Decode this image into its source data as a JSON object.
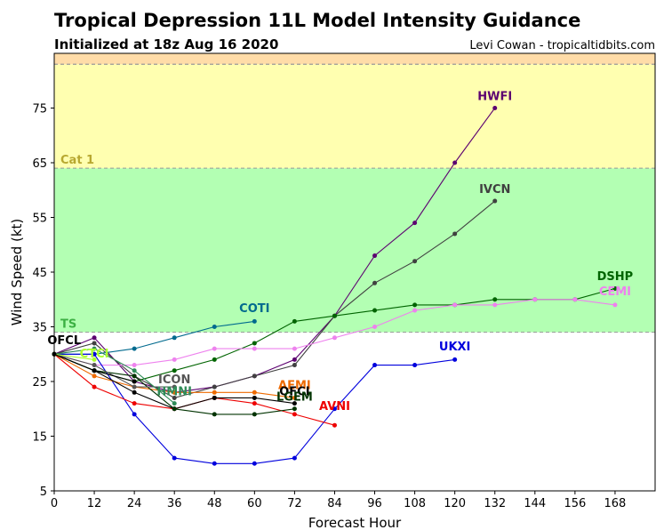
{
  "header": {
    "title": "Tropical Depression 11L Model Intensity Guidance",
    "subtitle": "Initialized at 18z Aug 16 2020",
    "credit": "Levi Cowan - tropicaltidbits.com"
  },
  "chart_data": {
    "type": "line",
    "xlabel": "Forecast Hour",
    "ylabel": "Wind Speed (kt)",
    "xlim": [
      0,
      180
    ],
    "ylim": [
      5,
      85
    ],
    "xticks": [
      0,
      12,
      24,
      36,
      48,
      60,
      72,
      84,
      96,
      108,
      120,
      132,
      144,
      156,
      168
    ],
    "yticks": [
      5,
      15,
      25,
      35,
      45,
      55,
      65,
      75
    ],
    "bands": [
      {
        "label": "TS",
        "from": 34,
        "to": 64,
        "color": "#b3ffb3",
        "label_color": "#3cb043"
      },
      {
        "label": "Cat 1",
        "from": 64,
        "to": 83,
        "color": "#ffffb0",
        "label_color": "#b8a830"
      },
      {
        "label": "",
        "from": 83,
        "to": 85,
        "color": "#ffdca8",
        "label_color": "#c08040"
      }
    ],
    "series": [
      {
        "name": "HWFI",
        "color": "#5c0070",
        "x": [
          0,
          12,
          24,
          36,
          48,
          60,
          72,
          84,
          96,
          108,
          120,
          132
        ],
        "y": [
          30,
          33,
          25,
          23,
          24,
          26,
          29,
          37,
          48,
          54,
          65,
          75
        ]
      },
      {
        "name": "IVCN",
        "color": "#404040",
        "x": [
          0,
          12,
          24,
          36,
          48,
          60,
          72,
          84,
          96,
          108,
          120,
          132
        ],
        "y": [
          30,
          32,
          26,
          22,
          24,
          26,
          28,
          37,
          43,
          47,
          52,
          58
        ]
      },
      {
        "name": "DSHP",
        "color": "#006400",
        "x": [
          0,
          12,
          24,
          36,
          48,
          60,
          72,
          84,
          96,
          108,
          120,
          132,
          144,
          156,
          168
        ],
        "y": [
          30,
          27,
          25,
          27,
          29,
          32,
          36,
          37,
          38,
          39,
          39,
          40,
          40,
          40,
          42
        ]
      },
      {
        "name": "CEMI",
        "color": "#ee82ee",
        "x": [
          0,
          12,
          24,
          36,
          48,
          60,
          72,
          84,
          96,
          108,
          120,
          132,
          144,
          156,
          168
        ],
        "y": [
          30,
          28,
          28,
          29,
          31,
          31,
          31,
          33,
          35,
          38,
          39,
          39,
          40,
          40,
          39
        ]
      },
      {
        "name": "COTI",
        "color": "#006a8e",
        "x": [
          0,
          12,
          24,
          36,
          48,
          60
        ],
        "y": [
          30,
          30,
          31,
          33,
          35,
          36
        ]
      },
      {
        "name": "UKXI",
        "color": "#0000dd",
        "x": [
          0,
          12,
          24,
          36,
          48,
          60,
          72,
          84,
          96,
          108,
          120
        ],
        "y": [
          30,
          30,
          19,
          11,
          10,
          10,
          11,
          20,
          28,
          28,
          29
        ]
      },
      {
        "name": "AVNI",
        "color": "#ee0000",
        "x": [
          0,
          12,
          24,
          36,
          48,
          60,
          72,
          84
        ],
        "y": [
          30,
          24,
          21,
          20,
          22,
          21,
          19,
          17
        ]
      },
      {
        "name": "AEMI",
        "color": "#ee6a00",
        "x": [
          0,
          12,
          24,
          36,
          48,
          60,
          72
        ],
        "y": [
          30,
          26,
          24,
          23,
          23,
          23,
          22
        ]
      },
      {
        "name": "OFCI",
        "color": "#000000",
        "x": [
          0,
          12,
          24,
          36,
          48,
          60,
          72
        ],
        "y": [
          30,
          27,
          23,
          20,
          22,
          22,
          21
        ]
      },
      {
        "name": "LGEM",
        "color": "#003300",
        "x": [
          0,
          12,
          24,
          36,
          48,
          60,
          72
        ],
        "y": [
          30,
          27,
          26,
          20,
          19,
          19,
          20
        ]
      },
      {
        "name": "ICON",
        "color": "#555555",
        "x": [
          0,
          12,
          24,
          36
        ],
        "y": [
          30,
          28,
          24,
          24
        ]
      },
      {
        "name": "HMNI",
        "color": "#2e8b57",
        "x": [
          0,
          12,
          24,
          36
        ],
        "y": [
          30,
          31,
          27,
          21
        ]
      },
      {
        "name": "CTCI",
        "color": "#adff2f",
        "x": [
          0,
          12
        ],
        "y": [
          30,
          29
        ]
      },
      {
        "name": "OFCL",
        "color": "#000000",
        "x": [
          0,
          12,
          24
        ],
        "y": [
          30,
          27,
          25
        ]
      }
    ],
    "labels": [
      {
        "text": "HWFI",
        "x": 132,
        "y": 76.5,
        "color": "#5c0070"
      },
      {
        "text": "IVCN",
        "x": 132,
        "y": 59.5,
        "color": "#404040"
      },
      {
        "text": "DSHP",
        "x": 168,
        "y": 43.5,
        "color": "#006400"
      },
      {
        "text": "CEMI",
        "x": 168,
        "y": 40.8,
        "color": "#ee82ee"
      },
      {
        "text": "COTI",
        "x": 60,
        "y": 37.7,
        "color": "#006a8e"
      },
      {
        "text": "UKXI",
        "x": 120,
        "y": 30.7,
        "color": "#0000dd"
      },
      {
        "text": "AVNI",
        "x": 84,
        "y": 19.8,
        "color": "#ee0000"
      },
      {
        "text": "AEMI",
        "x": 72,
        "y": 23.6,
        "color": "#ee6a00"
      },
      {
        "text": "OFCI",
        "x": 72,
        "y": 22.5,
        "color": "#000000"
      },
      {
        "text": "LGEM",
        "x": 72,
        "y": 21.5,
        "color": "#003300"
      },
      {
        "text": "ICON",
        "x": 36,
        "y": 24.7,
        "color": "#555555"
      },
      {
        "text": "HMNI",
        "x": 36,
        "y": 22.5,
        "color": "#2e8b57"
      },
      {
        "text": "CTCI",
        "x": 12,
        "y": 29.4,
        "color": "#adff2f"
      },
      {
        "text": "OFCL",
        "x": 3,
        "y": 31.8,
        "color": "#000000"
      }
    ]
  }
}
